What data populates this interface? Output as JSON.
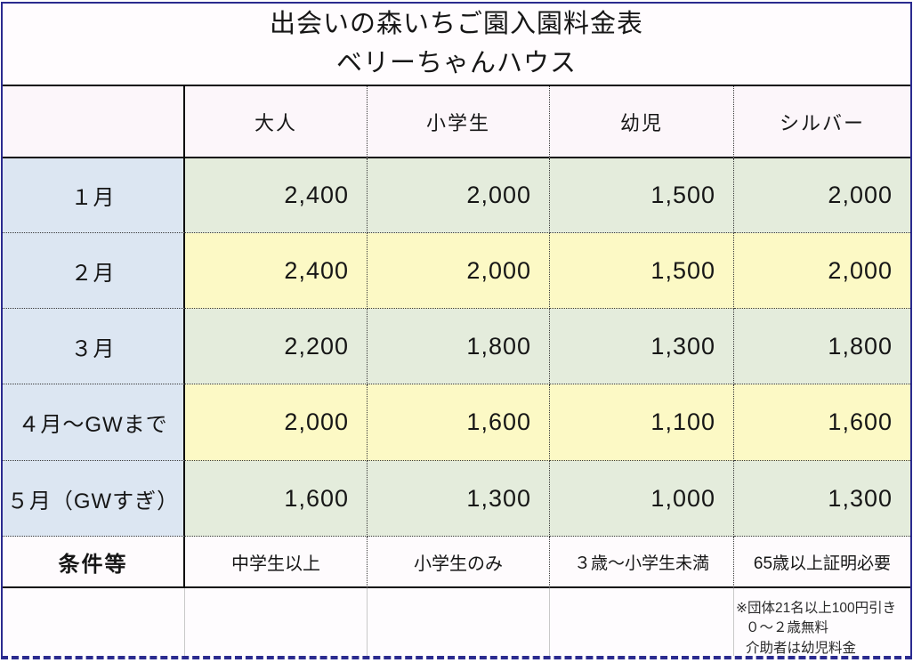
{
  "title": {
    "line1": "出会いの森いちご園入園料金表",
    "line2": "ベリーちゃんハウス"
  },
  "table": {
    "columns": [
      "大人",
      "小学生",
      "幼児",
      "シルバー"
    ],
    "rows": [
      {
        "label": "１月",
        "values": [
          "2,400",
          "2,000",
          "1,500",
          "2,000"
        ],
        "tone": "green"
      },
      {
        "label": "２月",
        "values": [
          "2,400",
          "2,000",
          "1,500",
          "2,000"
        ],
        "tone": "yellow"
      },
      {
        "label": "３月",
        "values": [
          "2,200",
          "1,800",
          "1,300",
          "1,800"
        ],
        "tone": "green"
      },
      {
        "label": "４月～GWまで",
        "values": [
          "2,000",
          "1,600",
          "1,100",
          "1,600"
        ],
        "tone": "yellow"
      },
      {
        "label": "５月（GWすぎ）",
        "values": [
          "1,600",
          "1,300",
          "1,000",
          "1,300"
        ],
        "tone": "green"
      }
    ],
    "conditions": {
      "label": "条件等",
      "values": [
        "中学生以上",
        "小学生のみ",
        "３歳～小学生未満",
        "65歳以上証明必要"
      ]
    },
    "notes": [
      "※団体21名以上100円引き",
      "０～２歳無料",
      "介助者は幼児料金"
    ]
  },
  "colors": {
    "frame_border": "#2b2b8f",
    "label_column": "#dce6f2",
    "row_green": "#e4ecdc",
    "row_yellow": "#fcf9c5",
    "header_bg": "#fcf6fa"
  }
}
